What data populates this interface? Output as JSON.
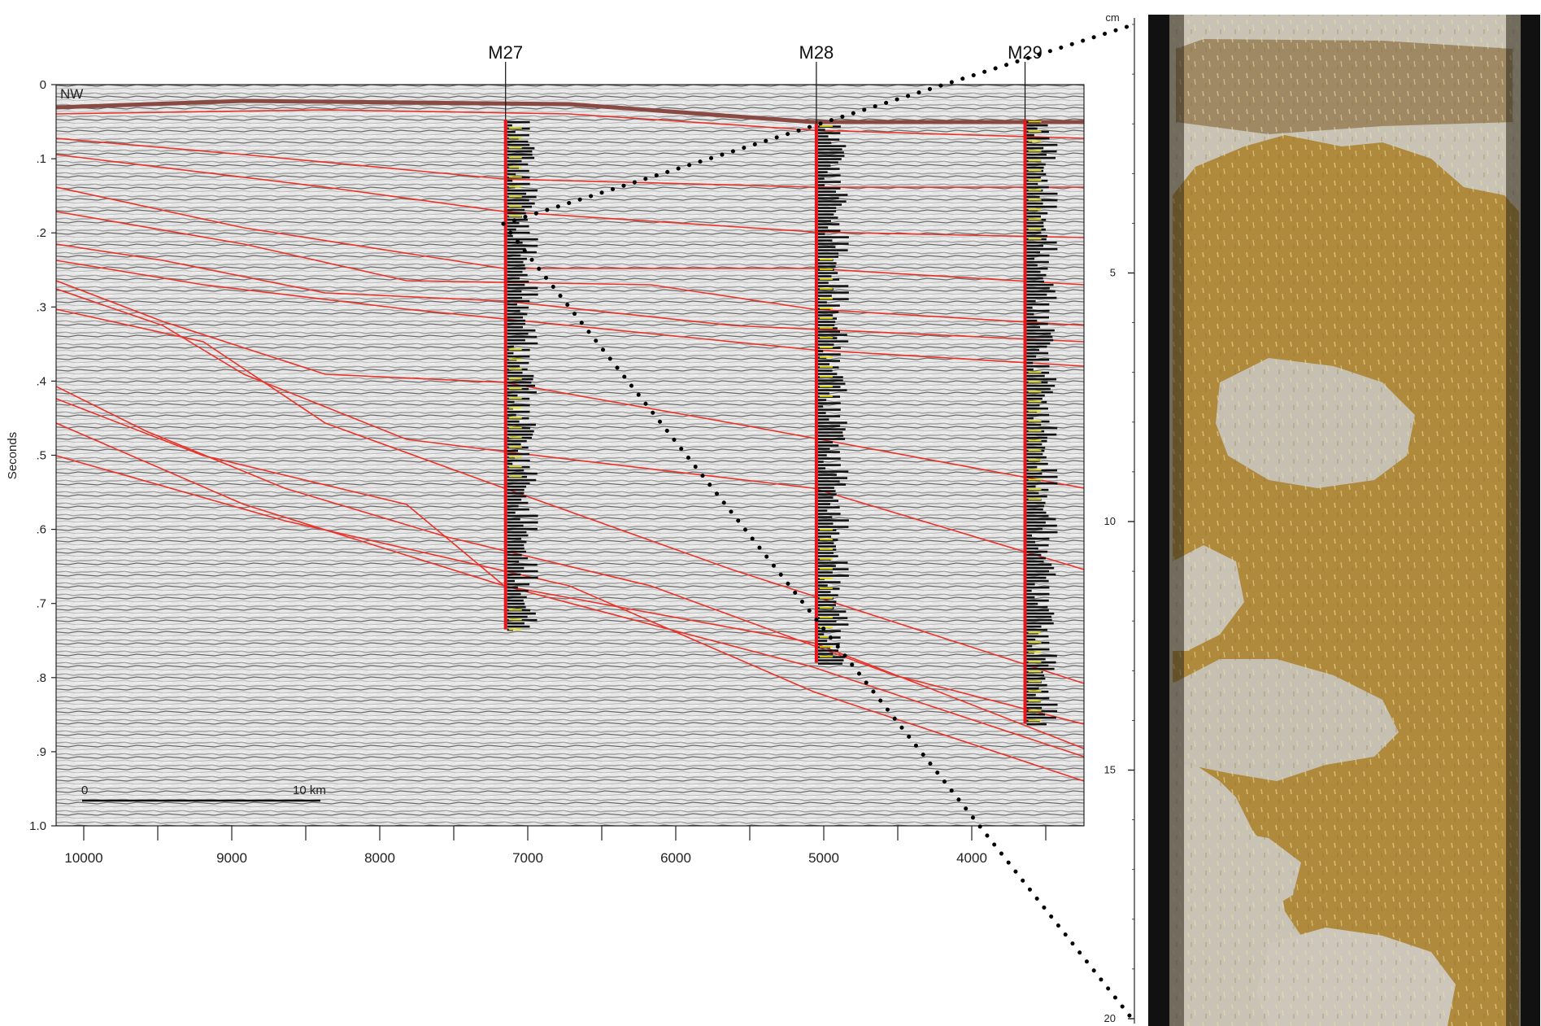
{
  "seismic": {
    "ylabel": "Seconds",
    "y_ticks": [
      "0",
      ".1",
      ".2",
      ".3",
      ".4",
      ".5",
      ".6",
      ".7",
      ".8",
      ".9",
      "1.0"
    ],
    "x_ticks": [
      "10000",
      "9000",
      "8000",
      "7000",
      "6000",
      "5000",
      "4000"
    ],
    "direction_label": "NW",
    "scalebar": {
      "start_label": "0",
      "end_label": "10 km"
    },
    "wells": [
      {
        "name": "M27",
        "trace_x": 7150,
        "top_s": 0.047,
        "bottom_s": 0.735
      },
      {
        "name": "M28",
        "trace_x": 5050,
        "top_s": 0.053,
        "bottom_s": 0.78
      },
      {
        "name": "M29",
        "trace_x": 3640,
        "top_s": 0.047,
        "bottom_s": 0.862
      }
    ],
    "colors": {
      "horizon": "#e8332a",
      "seafloor": "#8a4a44",
      "well": "#e8141c",
      "log": "#111111",
      "log_marker": "#e8e000",
      "connector": "#000000"
    }
  },
  "core": {
    "unit_label": "cm",
    "ticks": [
      "5",
      "10",
      "15",
      "20"
    ],
    "colors": {
      "sediment_brown": "#b08a3c",
      "sediment_gray": "#c9c3b6",
      "liner": "#111111"
    }
  }
}
